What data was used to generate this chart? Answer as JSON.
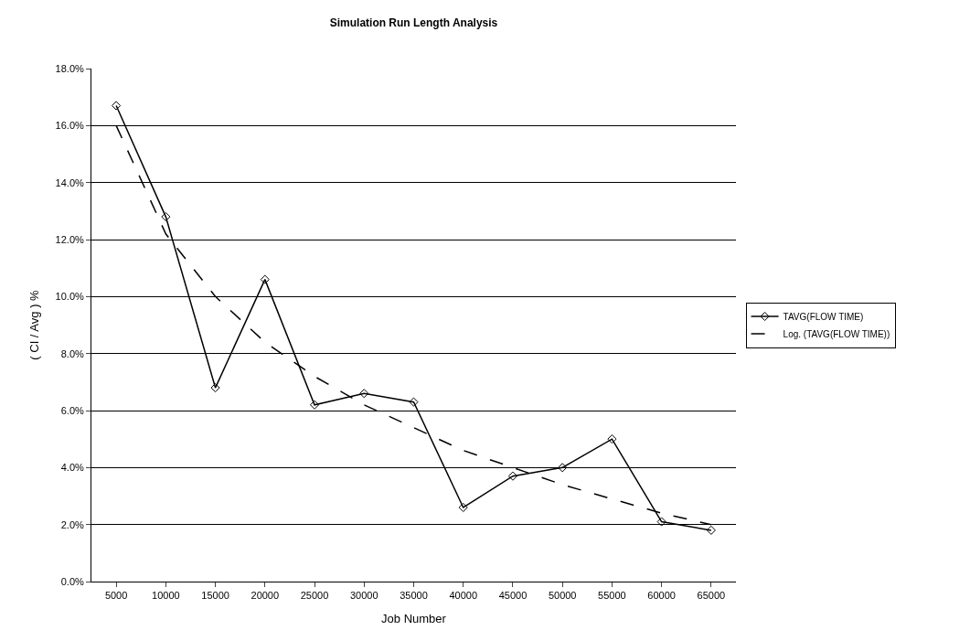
{
  "chart_data": {
    "type": "line",
    "title": "Simulation Run Length Analysis",
    "xlabel": "Job Number",
    "ylabel": "( CI / Avg ) %",
    "categories": [
      "5000",
      "10000",
      "15000",
      "20000",
      "25000",
      "30000",
      "35000",
      "40000",
      "45000",
      "50000",
      "55000",
      "60000",
      "65000"
    ],
    "series": [
      {
        "name": "TAVG(FLOW TIME)",
        "color": "#000000",
        "marker": "diamond",
        "line_style": "solid",
        "values": [
          16.7,
          12.8,
          6.8,
          10.6,
          6.2,
          6.6,
          6.3,
          2.6,
          3.7,
          4.0,
          5.0,
          2.1,
          1.8
        ]
      },
      {
        "name": "Log. (TAVG(FLOW TIME))",
        "color": "#000000",
        "marker": "none",
        "line_style": "dashed",
        "values": [
          16.0,
          12.2,
          10.0,
          8.4,
          7.2,
          6.2,
          5.4,
          4.6,
          4.0,
          3.4,
          2.9,
          2.4,
          2.0
        ]
      }
    ],
    "ylim": [
      0,
      18
    ],
    "yticks": [
      {
        "value": 0,
        "label": "0.0%"
      },
      {
        "value": 2,
        "label": "2.0%"
      },
      {
        "value": 4,
        "label": "4.0%"
      },
      {
        "value": 6,
        "label": "6.0%"
      },
      {
        "value": 8,
        "label": "8.0%"
      },
      {
        "value": 10,
        "label": "10.0%"
      },
      {
        "value": 12,
        "label": "12.0%"
      },
      {
        "value": 14,
        "label": "14.0%"
      },
      {
        "value": 16,
        "label": "16.0%"
      },
      {
        "value": 18,
        "label": "18.0%"
      }
    ],
    "grid": "y",
    "legend": "right"
  }
}
